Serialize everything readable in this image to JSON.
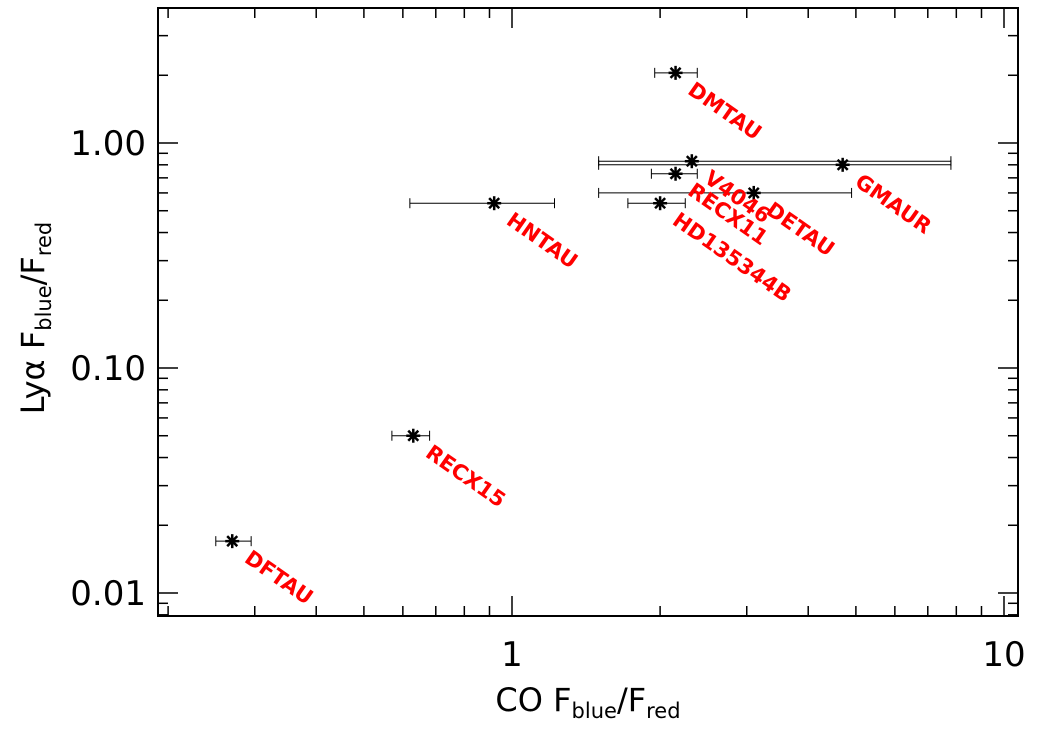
{
  "chart_data": {
    "type": "scatter",
    "x_scale": "log",
    "y_scale": "log",
    "xlim": [
      0.2,
      10
    ],
    "ylim": [
      0.008,
      4.0
    ],
    "xlabel": {
      "main": "CO F",
      "sub1": "blue",
      "slash": "/F",
      "sub2": "red"
    },
    "ylabel": {
      "main": "Lyα  F",
      "sub1": "blue",
      "slash": "/F",
      "sub2": "red"
    },
    "x_ticks": [
      {
        "value": 1,
        "label": "1"
      },
      {
        "value": 10,
        "label": "10"
      }
    ],
    "y_ticks": [
      {
        "value": 0.01,
        "label": "0.01"
      },
      {
        "value": 0.1,
        "label": "0.10"
      },
      {
        "value": 1,
        "label": "1.00"
      }
    ],
    "grid": false,
    "marker": "asterisk",
    "label_color": "#ff0000",
    "points": [
      {
        "name": "DMTAU",
        "x": 2.15,
        "y": 2.05,
        "xerr": [
          1.95,
          2.38
        ]
      },
      {
        "name": "V4046",
        "x": 2.32,
        "y": 0.83,
        "xerr": [
          1.5,
          7.8
        ]
      },
      {
        "name": "GMAUR",
        "x": 4.7,
        "y": 0.8,
        "xerr": [
          1.5,
          7.8
        ]
      },
      {
        "name": "RECX11",
        "x": 2.15,
        "y": 0.73,
        "xerr": [
          1.92,
          2.38
        ]
      },
      {
        "name": "DETAU",
        "x": 3.1,
        "y": 0.6,
        "xerr": [
          1.5,
          4.9
        ]
      },
      {
        "name": "HD135344B",
        "x": 2.0,
        "y": 0.54,
        "xerr": [
          1.72,
          2.25
        ]
      },
      {
        "name": "HNTAU",
        "x": 0.92,
        "y": 0.54,
        "xerr": [
          0.62,
          1.22
        ]
      },
      {
        "name": "RECX15",
        "x": 0.63,
        "y": 0.05,
        "xerr": [
          0.57,
          0.68
        ]
      },
      {
        "name": "DFTAU",
        "x": 0.27,
        "y": 0.017,
        "xerr": [
          0.25,
          0.295
        ]
      }
    ]
  }
}
